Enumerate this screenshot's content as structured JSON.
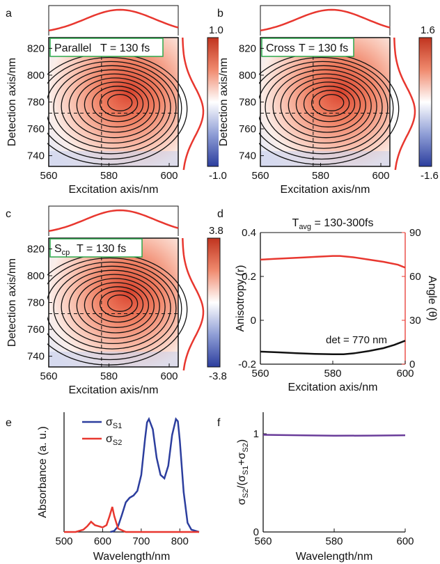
{
  "colors": {
    "red": "#e8372f",
    "blue": "#2c3e9e",
    "purple": "#6a3d9a",
    "box_border": "#2aa84a"
  },
  "panels": [
    {
      "letter": "a",
      "label": "Parallel",
      "time": "T = 130 fs",
      "cbar_max": "1.0",
      "cbar_min": "-1.0"
    },
    {
      "letter": "b",
      "label": "Cross",
      "time": "T = 130 fs",
      "cbar_max": "1.6",
      "cbar_min": "-1.6"
    },
    {
      "letter": "c",
      "label": "S",
      "label_sub": "cp",
      "time": "T = 130 fs",
      "cbar_max": "3.8",
      "cbar_min": "-3.8"
    }
  ],
  "maps": {
    "xlabel": "Excitation axis/nm",
    "ylabel": "Detection axis/nm",
    "xticks": [
      "560",
      "580",
      "600"
    ],
    "yticks": [
      "820",
      "800",
      "780",
      "760",
      "740"
    ]
  },
  "chart_data": [
    {
      "type": "heatmap",
      "panel": "a",
      "xlabel": "Excitation axis/nm",
      "ylabel": "Detection axis/nm",
      "xlim": [
        560,
        603
      ],
      "ylim": [
        732,
        828
      ],
      "peak": {
        "x": 584,
        "y": 780
      },
      "zlim": [
        -1.0,
        1.0
      ]
    },
    {
      "type": "heatmap",
      "panel": "b",
      "xlabel": "Excitation axis/nm",
      "ylabel": "Detection axis/nm",
      "xlim": [
        560,
        603
      ],
      "ylim": [
        732,
        828
      ],
      "peak": {
        "x": 584,
        "y": 780
      },
      "zlim": [
        -1.6,
        1.6
      ]
    },
    {
      "type": "heatmap",
      "panel": "c",
      "xlabel": "Excitation axis/nm",
      "ylabel": "Detection axis/nm",
      "xlim": [
        560,
        603
      ],
      "ylim": [
        732,
        828
      ],
      "peak": {
        "x": 584,
        "y": 780
      },
      "zlim": [
        -3.8,
        3.8
      ]
    },
    {
      "type": "line",
      "panel": "d",
      "title_main": "T",
      "title_sub": "avg",
      "title_rest": " = 130-300fs",
      "xlabel": "Excitation axis/nm",
      "ylabel_left": "Anisotropy (r)",
      "ylabel_right": "Angle (θ)",
      "xlim": [
        560,
        600
      ],
      "ylim_left": [
        -0.2,
        0.4
      ],
      "ylim_right": [
        0,
        90
      ],
      "xticks": [
        "560",
        "580",
        "600"
      ],
      "yticks_left": [
        "0.4",
        "0.2",
        "0",
        "-0.2"
      ],
      "yticks_right": [
        "90",
        "60",
        "30",
        "0"
      ],
      "annotation": "det = 770 nm",
      "series": [
        {
          "axis": "right",
          "color": "#e8372f",
          "x": [
            560,
            564,
            568,
            572,
            576,
            580,
            582,
            586,
            590,
            594,
            598,
            600
          ],
          "y": [
            71.5,
            72,
            72.5,
            73,
            73.5,
            74,
            74,
            73,
            71.5,
            70,
            68,
            66
          ]
        },
        {
          "axis": "left",
          "color": "#111111",
          "x": [
            560,
            565,
            570,
            575,
            580,
            583,
            586,
            590,
            594,
            597,
            600
          ],
          "y": [
            -0.143,
            -0.146,
            -0.15,
            -0.153,
            -0.155,
            -0.155,
            -0.15,
            -0.14,
            -0.127,
            -0.112,
            -0.093
          ]
        }
      ]
    },
    {
      "type": "line",
      "panel": "e",
      "xlabel": "Wavelength/nm",
      "ylabel": "Absorbance (a. u.)",
      "xlim": [
        500,
        850
      ],
      "ylim": [
        0,
        1.05
      ],
      "xticks": [
        "500",
        "600",
        "700",
        "800"
      ],
      "legend": [
        {
          "main": "σ",
          "sub": "S1"
        },
        {
          "main": "σ",
          "sub": "S2"
        }
      ],
      "series": [
        {
          "color": "#2c3e9e",
          "x": [
            620,
            630,
            640,
            650,
            660,
            670,
            680,
            690,
            700,
            710,
            715,
            720,
            730,
            740,
            750,
            760,
            770,
            780,
            790,
            795,
            800,
            810,
            820,
            830,
            850
          ],
          "y": [
            0,
            0.01,
            0.05,
            0.15,
            0.26,
            0.3,
            0.32,
            0.36,
            0.5,
            0.82,
            0.96,
            0.99,
            0.9,
            0.65,
            0.5,
            0.47,
            0.58,
            0.85,
            0.99,
            0.97,
            0.8,
            0.35,
            0.08,
            0.02,
            0
          ]
        },
        {
          "color": "#e8372f",
          "x": [
            500,
            530,
            550,
            560,
            570,
            580,
            590,
            600,
            610,
            618,
            625,
            630,
            640,
            660,
            700,
            850
          ],
          "y": [
            0,
            0,
            0.02,
            0.05,
            0.09,
            0.06,
            0.05,
            0.04,
            0.06,
            0.14,
            0.22,
            0.14,
            0.03,
            0,
            0,
            0
          ]
        }
      ]
    },
    {
      "type": "line",
      "panel": "f",
      "xlabel": "Wavelength/nm",
      "ylabel_parts": {
        "s1": "σ",
        "sub1": "S2",
        "s2": "/(σ",
        "sub2": "S1",
        "s3": "+σ",
        "sub3": "S2",
        "s4": ")"
      },
      "xlim": [
        560,
        600
      ],
      "ylim": [
        0,
        1.22
      ],
      "xticks": [
        "560",
        "580",
        "600"
      ],
      "yticks": [
        "1",
        "0"
      ],
      "series": [
        {
          "color": "#6a3d9a",
          "x": [
            560,
            570,
            580,
            590,
            600
          ],
          "y": [
            0.99,
            0.985,
            0.98,
            0.982,
            0.985
          ]
        }
      ]
    }
  ]
}
